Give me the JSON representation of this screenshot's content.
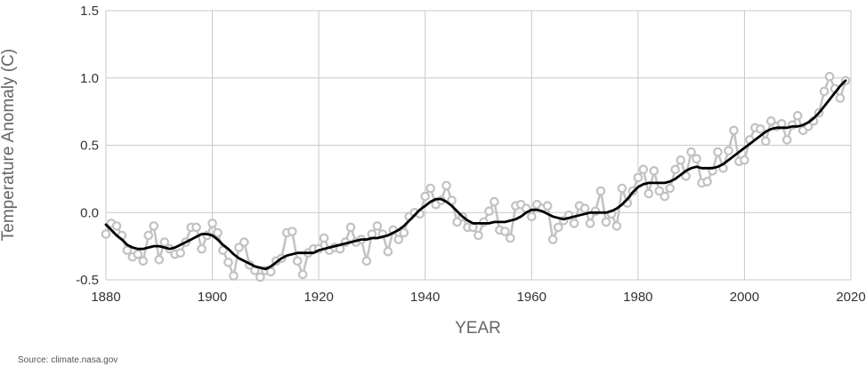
{
  "source_text": "Source: climate.nasa.gov",
  "colors": {
    "grid": "#c8c8c8",
    "annual": "#c2c2c2",
    "smooth": "#000000",
    "axis_text": "#333333",
    "title_text": "#666666"
  },
  "chart_data": {
    "type": "line",
    "xlabel": "YEAR",
    "ylabel": "Temperature Anomaly (C)",
    "xlim": [
      1880,
      2020
    ],
    "ylim": [
      -0.5,
      1.5
    ],
    "x_ticks": [
      1880,
      1900,
      1920,
      1940,
      1960,
      1980,
      2000,
      2020
    ],
    "y_ticks": [
      -0.5,
      0.0,
      0.5,
      1.0,
      1.5
    ],
    "y_tick_labels": [
      "-0.5",
      "0.0",
      "0.5",
      "1.0",
      "1.5"
    ],
    "grid": true,
    "x": [
      1880,
      1881,
      1882,
      1883,
      1884,
      1885,
      1886,
      1887,
      1888,
      1889,
      1890,
      1891,
      1892,
      1893,
      1894,
      1895,
      1896,
      1897,
      1898,
      1899,
      1900,
      1901,
      1902,
      1903,
      1904,
      1905,
      1906,
      1907,
      1908,
      1909,
      1910,
      1911,
      1912,
      1913,
      1914,
      1915,
      1916,
      1917,
      1918,
      1919,
      1920,
      1921,
      1922,
      1923,
      1924,
      1925,
      1926,
      1927,
      1928,
      1929,
      1930,
      1931,
      1932,
      1933,
      1934,
      1935,
      1936,
      1937,
      1938,
      1939,
      1940,
      1941,
      1942,
      1943,
      1944,
      1945,
      1946,
      1947,
      1948,
      1949,
      1950,
      1951,
      1952,
      1953,
      1954,
      1955,
      1956,
      1957,
      1958,
      1959,
      1960,
      1961,
      1962,
      1963,
      1964,
      1965,
      1966,
      1967,
      1968,
      1969,
      1970,
      1971,
      1972,
      1973,
      1974,
      1975,
      1976,
      1977,
      1978,
      1979,
      1980,
      1981,
      1982,
      1983,
      1984,
      1985,
      1986,
      1987,
      1988,
      1989,
      1990,
      1991,
      1992,
      1993,
      1994,
      1995,
      1996,
      1997,
      1998,
      1999,
      2000,
      2001,
      2002,
      2003,
      2004,
      2005,
      2006,
      2007,
      2008,
      2009,
      2010,
      2011,
      2012,
      2013,
      2014,
      2015,
      2016,
      2017,
      2018,
      2019
    ],
    "series": [
      {
        "values": [
          -0.16,
          -0.08,
          -0.1,
          -0.17,
          -0.28,
          -0.33,
          -0.31,
          -0.36,
          -0.17,
          -0.1,
          -0.35,
          -0.22,
          -0.27,
          -0.31,
          -0.3,
          -0.22,
          -0.11,
          -0.11,
          -0.27,
          -0.17,
          -0.08,
          -0.15,
          -0.28,
          -0.37,
          -0.47,
          -0.26,
          -0.22,
          -0.39,
          -0.43,
          -0.48,
          -0.43,
          -0.44,
          -0.36,
          -0.34,
          -0.15,
          -0.14,
          -0.36,
          -0.46,
          -0.3,
          -0.27,
          -0.27,
          -0.19,
          -0.28,
          -0.26,
          -0.27,
          -0.22,
          -0.11,
          -0.22,
          -0.2,
          -0.36,
          -0.16,
          -0.1,
          -0.16,
          -0.29,
          -0.13,
          -0.2,
          -0.15,
          -0.03,
          -0.0,
          -0.01,
          0.12,
          0.18,
          0.06,
          0.09,
          0.2,
          0.09,
          -0.07,
          -0.03,
          -0.11,
          -0.11,
          -0.17,
          -0.07,
          0.01,
          0.08,
          -0.13,
          -0.14,
          -0.19,
          0.05,
          0.06,
          0.03,
          -0.03,
          0.06,
          0.03,
          0.05,
          -0.2,
          -0.11,
          -0.06,
          -0.02,
          -0.08,
          0.05,
          0.03,
          -0.08,
          0.01,
          0.16,
          -0.07,
          -0.01,
          -0.1,
          0.18,
          0.07,
          0.16,
          0.26,
          0.32,
          0.14,
          0.31,
          0.16,
          0.12,
          0.18,
          0.32,
          0.39,
          0.27,
          0.45,
          0.4,
          0.22,
          0.23,
          0.31,
          0.45,
          0.33,
          0.46,
          0.61,
          0.38,
          0.39,
          0.54,
          0.63,
          0.62,
          0.53,
          0.68,
          0.64,
          0.66,
          0.54,
          0.65,
          0.72,
          0.61,
          0.64,
          0.68,
          0.74,
          0.9,
          1.01,
          0.92,
          0.85,
          0.98
        ]
      },
      {
        "values": [
          -0.09,
          -0.13,
          -0.17,
          -0.2,
          -0.24,
          -0.26,
          -0.27,
          -0.27,
          -0.26,
          -0.25,
          -0.25,
          -0.26,
          -0.27,
          -0.26,
          -0.24,
          -0.22,
          -0.2,
          -0.18,
          -0.16,
          -0.16,
          -0.17,
          -0.2,
          -0.24,
          -0.27,
          -0.31,
          -0.34,
          -0.36,
          -0.38,
          -0.4,
          -0.41,
          -0.42,
          -0.4,
          -0.37,
          -0.34,
          -0.32,
          -0.31,
          -0.3,
          -0.3,
          -0.3,
          -0.3,
          -0.28,
          -0.27,
          -0.26,
          -0.25,
          -0.24,
          -0.23,
          -0.22,
          -0.21,
          -0.2,
          -0.2,
          -0.19,
          -0.19,
          -0.18,
          -0.17,
          -0.15,
          -0.13,
          -0.1,
          -0.06,
          -0.02,
          0.02,
          0.05,
          0.08,
          0.1,
          0.1,
          0.08,
          0.05,
          0.01,
          -0.03,
          -0.06,
          -0.08,
          -0.08,
          -0.08,
          -0.08,
          -0.07,
          -0.07,
          -0.07,
          -0.06,
          -0.05,
          -0.03,
          0.0,
          0.02,
          0.02,
          0.01,
          -0.01,
          -0.03,
          -0.04,
          -0.05,
          -0.04,
          -0.03,
          -0.02,
          -0.01,
          0.0,
          0.0,
          0.0,
          0.0,
          0.01,
          0.03,
          0.06,
          0.1,
          0.15,
          0.19,
          0.21,
          0.22,
          0.22,
          0.22,
          0.22,
          0.23,
          0.25,
          0.28,
          0.31,
          0.33,
          0.34,
          0.33,
          0.33,
          0.33,
          0.34,
          0.36,
          0.39,
          0.42,
          0.45,
          0.48,
          0.51,
          0.54,
          0.57,
          0.6,
          0.62,
          0.63,
          0.63,
          0.63,
          0.64,
          0.64,
          0.65,
          0.67,
          0.7,
          0.74,
          0.79,
          0.84,
          0.89,
          0.94,
          0.98
        ]
      }
    ]
  }
}
